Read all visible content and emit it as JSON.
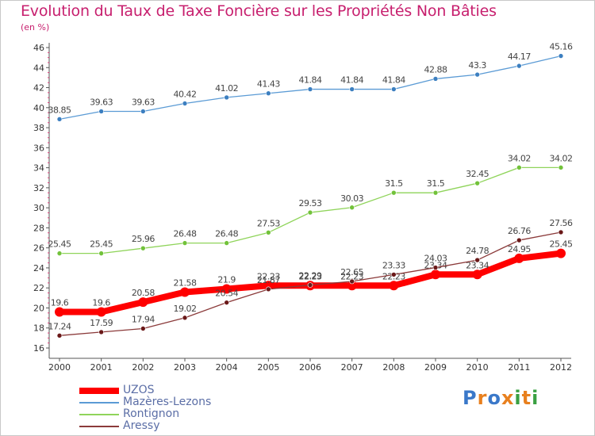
{
  "header": {
    "title": "Evolution du Taux de Taxe Foncière sur les Propriétés Non Bâties",
    "unit": "(en %)"
  },
  "logo": {
    "text": "Proxiti",
    "colors": [
      "#3a78c9",
      "#e8801e",
      "#3a78c9",
      "#e8801e",
      "#3aa042",
      "#e8801e",
      "#3aa042"
    ]
  },
  "chart_data": {
    "type": "line",
    "x": [
      "2000",
      "2001",
      "2002",
      "2003",
      "2004",
      "2005",
      "2006",
      "2007",
      "2008",
      "2009",
      "2010",
      "2011",
      "2012"
    ],
    "ylim": [
      16,
      46
    ],
    "yticks": [
      16,
      18,
      20,
      22,
      24,
      26,
      28,
      30,
      32,
      34,
      36,
      38,
      40,
      42,
      44,
      46
    ],
    "grid": false,
    "legend_position": "bottom-left",
    "series": [
      {
        "name": "Mazères-Lezons",
        "color": "#5b9bd5",
        "marker": "#3c7fc0",
        "width": 1.3,
        "values": [
          38.85,
          39.63,
          39.63,
          40.42,
          41.02,
          41.43,
          41.84,
          41.84,
          41.84,
          42.88,
          43.3,
          44.17,
          45.16
        ],
        "labels": [
          "38.85",
          "39.63",
          "39.63",
          "40.42",
          "41.02",
          "41.43",
          "41.84",
          "41.84",
          "41.84",
          "42.88",
          "43.3",
          "44.17",
          "45.16"
        ]
      },
      {
        "name": "Rontignon",
        "color": "#8fd45a",
        "marker": "#72c23a",
        "width": 1.3,
        "values": [
          25.45,
          25.45,
          25.96,
          26.48,
          26.48,
          27.53,
          29.53,
          30.03,
          31.5,
          31.5,
          32.45,
          34.02,
          34.02
        ],
        "labels": [
          "25.45",
          "25.45",
          "25.96",
          "26.48",
          "26.48",
          "27.53",
          "29.53",
          "30.03",
          "31.5",
          "31.5",
          "32.45",
          "34.02",
          "34.02"
        ]
      },
      {
        "name": "UZOS",
        "color": "#ff0000",
        "marker": "#ff0000",
        "width": 8,
        "values": [
          19.6,
          19.6,
          20.58,
          21.58,
          21.9,
          22.23,
          22.23,
          22.23,
          22.23,
          23.34,
          23.34,
          24.95,
          25.45
        ],
        "labels": [
          "19.6",
          "19.6",
          "20.58",
          "21.58",
          "21.9",
          "22.23",
          "22.23",
          "22.23",
          "22.23",
          "23.34",
          "23.34",
          "24.95",
          "25.45"
        ]
      },
      {
        "name": "Aressy",
        "color": "#8b3a3a",
        "marker": "#6a1818",
        "width": 1.3,
        "values": [
          17.24,
          17.59,
          17.94,
          19.02,
          20.54,
          21.87,
          22.29,
          22.65,
          23.33,
          24.03,
          24.78,
          26.76,
          27.56
        ],
        "labels": [
          "17.24",
          "17.59",
          "17.94",
          "19.02",
          "20.54",
          "21.87",
          "22.29",
          "22.65",
          "23.33",
          "24.03",
          "24.78",
          "26.76",
          "27.56"
        ]
      }
    ],
    "legend_order": [
      "UZOS",
      "Mazères-Lezons",
      "Rontignon",
      "Aressy"
    ]
  }
}
